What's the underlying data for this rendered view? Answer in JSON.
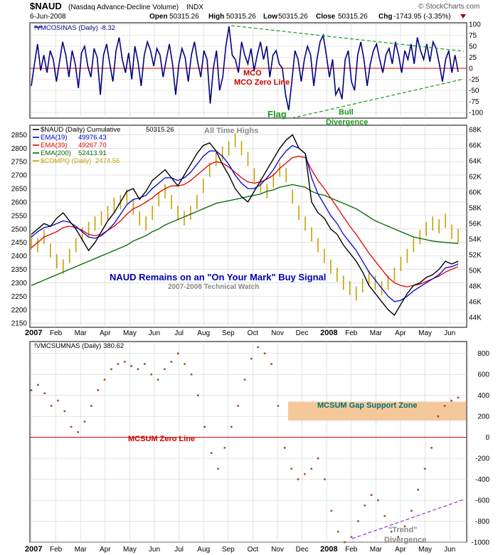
{
  "header": {
    "symbol": "$NAUD",
    "description": "(Nasdaq Advance-Decline Volume)",
    "exchange": "INDX",
    "date": "6-Jun-2008",
    "open_label": "Open",
    "open": "50315.26",
    "high_label": "High",
    "high": "50315.26",
    "low_label": "Low",
    "low": "50315.26",
    "close_label": "Close",
    "close": "50315.26",
    "chg_label": "Chg",
    "chg": "-1743.95 (-3.35%)",
    "watermark": "© StockCharts.com"
  },
  "colors": {
    "oscillator": "#00007f",
    "zero_line": "#cc0000",
    "trend_green": "#1a9a1a",
    "naud": "#000000",
    "ema19": "#0000cc",
    "ema39": "#e00000",
    "ema200": "#006400",
    "compq": "#c8a000",
    "mcsum": "#a0522d",
    "support_zone": "#f5c89a",
    "divergence": "#9932cc",
    "grid": "#d0d0d0"
  },
  "x_axis": {
    "labels": [
      "2007",
      "Feb",
      "Mar",
      "Apr",
      "May",
      "Jun",
      "Jul",
      "Aug",
      "Sep",
      "Oct",
      "Nov",
      "Dec",
      "2008",
      "Feb",
      "Mar",
      "Apr",
      "May",
      "Jun"
    ]
  },
  "chart_data": [
    {
      "type": "line",
      "title": "!VMCOSINAS (Daily) -8.32",
      "ylim": [
        -100,
        100
      ],
      "yticks": [
        100,
        75,
        50,
        25,
        0,
        -25,
        -50,
        -75,
        -100
      ],
      "series": [
        {
          "name": "!VMCOSINAS",
          "values": [
            -40,
            10,
            55,
            -5,
            30,
            -10,
            40,
            20,
            -30,
            15,
            60,
            30,
            -20,
            40,
            10,
            -45,
            35,
            50,
            5,
            -20,
            45,
            25,
            -60,
            30,
            55,
            10,
            -30,
            40,
            70,
            20,
            -10,
            35,
            -25,
            50,
            15,
            -40,
            30,
            60,
            40,
            5,
            45,
            30,
            -20,
            20,
            55,
            10,
            -60,
            10,
            45,
            25,
            -30,
            30,
            60,
            15,
            -20,
            40,
            20,
            -80,
            0,
            40,
            -50,
            -20,
            50,
            95,
            30,
            20,
            -10,
            60,
            30,
            10,
            45,
            -5,
            30,
            60,
            20,
            50,
            -20,
            30,
            40,
            10,
            0,
            -60,
            -95,
            -30,
            40,
            20,
            -30,
            20,
            50,
            30,
            -40,
            20,
            60,
            75,
            30,
            -20,
            20,
            -60,
            -45,
            -70,
            20,
            40,
            -30,
            -50,
            30,
            60,
            20,
            -40,
            10,
            40,
            55,
            20,
            -10,
            30,
            45,
            10,
            60,
            30,
            -10,
            40,
            20,
            55,
            10,
            70,
            40,
            20,
            55,
            15,
            60,
            45,
            10,
            -30,
            20,
            40,
            -10,
            30,
            -8
          ]
        }
      ],
      "reference_line": {
        "value": 0,
        "label": "MCO Zero Line"
      },
      "annotations": [
        "Flag",
        "Bull",
        "Divergence"
      ]
    },
    {
      "type": "line",
      "title": "$NAUD (Daily) Cumulative 50315.26",
      "left_yticks": [
        2850,
        2800,
        2750,
        2700,
        2650,
        2600,
        2550,
        2500,
        2450,
        2400,
        2350,
        2300,
        2250,
        2200,
        2150
      ],
      "right_yticks": [
        "68K",
        "66K",
        "64K",
        "62K",
        "60K",
        "58K",
        "56K",
        "54K",
        "52K",
        "50K",
        "48K",
        "46K",
        "44K"
      ],
      "ylim": [
        2140,
        2880
      ],
      "legend": [
        {
          "name": "$NAUD (Daily) Cumulative",
          "value": "50315.26"
        },
        {
          "name": "EMA(19)",
          "value": "49976.43"
        },
        {
          "name": "EMA(39)",
          "value": "49267.70"
        },
        {
          "name": "EMA(200)",
          "value": "52413.91"
        },
        {
          "name": "$COMPQ (Daily)",
          "value": "2474.56"
        }
      ],
      "series": [
        {
          "name": "$NAUD",
          "values": [
            2480,
            2500,
            2520,
            2510,
            2540,
            2560,
            2530,
            2500,
            2460,
            2420,
            2450,
            2490,
            2530,
            2560,
            2600,
            2640,
            2650,
            2610,
            2640,
            2680,
            2700,
            2720,
            2690,
            2660,
            2700,
            2740,
            2780,
            2810,
            2820,
            2790,
            2740,
            2700,
            2650,
            2620,
            2600,
            2640,
            2680,
            2720,
            2760,
            2800,
            2830,
            2850,
            2800,
            2780,
            2600,
            2560,
            2540,
            2500,
            2480,
            2440,
            2410,
            2380,
            2340,
            2290,
            2260,
            2230,
            2200,
            2180,
            2220,
            2260,
            2290,
            2300,
            2320,
            2330,
            2350,
            2380,
            2370,
            2380
          ]
        },
        {
          "name": "EMA(19)",
          "values": [
            2470,
            2490,
            2505,
            2510,
            2520,
            2530,
            2525,
            2510,
            2490,
            2470,
            2465,
            2475,
            2495,
            2520,
            2555,
            2590,
            2610,
            2615,
            2625,
            2650,
            2670,
            2690,
            2690,
            2680,
            2690,
            2710,
            2740,
            2770,
            2790,
            2790,
            2770,
            2740,
            2700,
            2670,
            2650,
            2650,
            2665,
            2690,
            2720,
            2760,
            2790,
            2810,
            2800,
            2780,
            2690,
            2630,
            2590,
            2550,
            2520,
            2480,
            2450,
            2420,
            2380,
            2340,
            2310,
            2280,
            2250,
            2230,
            2235,
            2250,
            2270,
            2285,
            2300,
            2315,
            2330,
            2355,
            2360,
            2370
          ]
        },
        {
          "name": "EMA(39)",
          "values": [
            2430,
            2450,
            2470,
            2480,
            2490,
            2505,
            2510,
            2505,
            2495,
            2480,
            2475,
            2480,
            2495,
            2510,
            2530,
            2555,
            2575,
            2585,
            2600,
            2615,
            2635,
            2650,
            2660,
            2660,
            2665,
            2680,
            2700,
            2720,
            2740,
            2750,
            2745,
            2730,
            2710,
            2690,
            2675,
            2670,
            2675,
            2685,
            2700,
            2725,
            2745,
            2765,
            2770,
            2765,
            2720,
            2680,
            2650,
            2615,
            2580,
            2545,
            2510,
            2480,
            2445,
            2410,
            2380,
            2350,
            2320,
            2300,
            2290,
            2285,
            2290,
            2295,
            2305,
            2315,
            2325,
            2340,
            2350,
            2360
          ]
        },
        {
          "name": "EMA(200)",
          "values": [
            2290,
            2300,
            2310,
            2320,
            2330,
            2340,
            2350,
            2360,
            2370,
            2380,
            2390,
            2400,
            2410,
            2420,
            2430,
            2440,
            2455,
            2465,
            2475,
            2490,
            2500,
            2515,
            2525,
            2535,
            2545,
            2555,
            2565,
            2575,
            2585,
            2595,
            2600,
            2605,
            2610,
            2615,
            2620,
            2625,
            2630,
            2640,
            2645,
            2655,
            2660,
            2665,
            2660,
            2655,
            2640,
            2630,
            2625,
            2615,
            2605,
            2595,
            2585,
            2575,
            2560,
            2545,
            2530,
            2520,
            2510,
            2500,
            2490,
            2480,
            2470,
            2465,
            2460,
            2455,
            2452,
            2450,
            2448,
            2446
          ]
        },
        {
          "name": "$COMPQ",
          "values": [
            2450,
            2440,
            2470,
            2420,
            2380,
            2360,
            2400,
            2440,
            2480,
            2500,
            2520,
            2540,
            2560,
            2590,
            2600,
            2620,
            2580,
            2540,
            2520,
            2560,
            2610,
            2640,
            2600,
            2560,
            2540,
            2560,
            2600,
            2660,
            2720,
            2760,
            2780,
            2800,
            2830,
            2800,
            2760,
            2700,
            2660,
            2640,
            2680,
            2720,
            2700,
            2620,
            2560,
            2520,
            2480,
            2440,
            2400,
            2360,
            2330,
            2300,
            2280,
            2260,
            2290,
            2320,
            2300,
            2280,
            2300,
            2330,
            2370,
            2400,
            2440,
            2470,
            2500,
            2520,
            2510,
            2530,
            2490,
            2475
          ]
        }
      ],
      "annotations": [
        "All Time Highs",
        "NAUD Remains on an \"On Your Mark\" Buy Signal",
        "2007-2008 Technical Watch"
      ]
    },
    {
      "type": "scatter",
      "title": "!VMCSUMNAS (Daily) 380.62",
      "ylim": [
        -1000,
        900
      ],
      "yticks": [
        800,
        600,
        400,
        200,
        0,
        -200,
        -400,
        -600,
        -800,
        -1000
      ],
      "series": [
        {
          "name": "!VMCSUMNAS",
          "values": [
            450,
            500,
            420,
            300,
            350,
            250,
            100,
            50,
            150,
            300,
            450,
            550,
            650,
            700,
            720,
            680,
            650,
            700,
            600,
            550,
            650,
            720,
            800,
            700,
            600,
            400,
            100,
            -150,
            -300,
            -100,
            100,
            300,
            550,
            750,
            860,
            800,
            700,
            300,
            -100,
            -300,
            -400,
            -350,
            -300,
            -200,
            -400,
            -700,
            -900,
            -1000,
            -950,
            -800,
            -650,
            -550,
            -600,
            -750,
            -900,
            -950,
            -850,
            -700,
            -500,
            -300,
            -100,
            200,
            300,
            350,
            380
          ]
        }
      ],
      "reference_line": {
        "value": 0,
        "label": "MCSUM Zero Line"
      },
      "bands": [
        {
          "label": "MCSUM Gap Support Zone",
          "from": 160,
          "to": 340
        }
      ],
      "annotations": [
        "\"Trend\"",
        "Divergence"
      ]
    }
  ]
}
